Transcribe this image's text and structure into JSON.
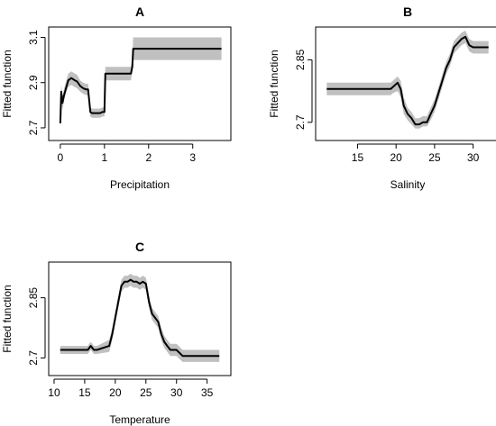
{
  "colors": {
    "band": "#c0c0c0",
    "line": "#000000",
    "axis": "#000000"
  },
  "chart_data": [
    {
      "id": "A",
      "type": "line",
      "title": "A",
      "xlabel": "Precipitation",
      "ylabel": "Fitted function",
      "xlim": [
        -0.1,
        3.7
      ],
      "ylim": [
        2.66,
        3.13
      ],
      "x_ticks": [
        0,
        1,
        2,
        3
      ],
      "y_ticks": [
        2.7,
        2.9,
        3.1
      ],
      "series": [
        {
          "x": [
            0.0,
            0.02,
            0.05,
            0.08,
            0.12,
            0.18,
            0.25,
            0.33,
            0.38,
            0.45,
            0.52,
            0.58,
            0.63,
            0.68,
            0.72,
            0.78,
            0.85,
            0.9,
            0.95,
            1.0,
            1.02,
            1.05,
            1.6,
            1.63,
            1.65,
            3.65
          ],
          "y": [
            2.72,
            2.86,
            2.81,
            2.84,
            2.87,
            2.91,
            2.92,
            2.91,
            2.905,
            2.885,
            2.875,
            2.87,
            2.87,
            2.77,
            2.765,
            2.765,
            2.765,
            2.765,
            2.77,
            2.77,
            2.94,
            2.94,
            2.94,
            2.97,
            3.05,
            3.05
          ],
          "lower": [
            2.7,
            2.82,
            2.78,
            2.82,
            2.85,
            2.88,
            2.89,
            2.88,
            2.875,
            2.86,
            2.85,
            2.845,
            2.845,
            2.75,
            2.745,
            2.745,
            2.745,
            2.745,
            2.75,
            2.75,
            2.91,
            2.91,
            2.91,
            2.95,
            3.0,
            3.0
          ],
          "upper": [
            2.74,
            2.89,
            2.84,
            2.87,
            2.9,
            2.94,
            2.95,
            2.94,
            2.935,
            2.91,
            2.9,
            2.895,
            2.895,
            2.79,
            2.785,
            2.785,
            2.785,
            2.785,
            2.79,
            2.79,
            2.97,
            2.97,
            2.97,
            3.0,
            3.1,
            3.1
          ]
        }
      ]
    },
    {
      "id": "B",
      "type": "line",
      "title": "B",
      "xlabel": "Salinity",
      "ylabel": "Fitted function",
      "xlim": [
        10.5,
        32.5
      ],
      "ylim": [
        2.665,
        2.92
      ],
      "x_ticks": [
        15,
        20,
        25,
        30
      ],
      "y_ticks": [
        2.7,
        2.85
      ],
      "series": [
        {
          "x": [
            11,
            19.3,
            19.6,
            20.2,
            20.6,
            21,
            21.5,
            22,
            22.5,
            23,
            23.5,
            24,
            24.5,
            25,
            25.5,
            26,
            26.5,
            27,
            27.5,
            28,
            28.5,
            29,
            29.5,
            30,
            32
          ],
          "y": [
            2.78,
            2.78,
            2.785,
            2.795,
            2.78,
            2.74,
            2.72,
            2.71,
            2.695,
            2.695,
            2.7,
            2.7,
            2.72,
            2.74,
            2.77,
            2.8,
            2.83,
            2.85,
            2.88,
            2.89,
            2.9,
            2.905,
            2.885,
            2.88,
            2.88
          ],
          "lower": [
            2.765,
            2.765,
            2.77,
            2.775,
            2.76,
            2.72,
            2.705,
            2.695,
            2.685,
            2.685,
            2.69,
            2.69,
            2.705,
            2.725,
            2.755,
            2.785,
            2.815,
            2.835,
            2.865,
            2.875,
            2.885,
            2.89,
            2.87,
            2.865,
            2.865
          ],
          "upper": [
            2.795,
            2.795,
            2.8,
            2.81,
            2.8,
            2.76,
            2.735,
            2.725,
            2.71,
            2.71,
            2.715,
            2.715,
            2.735,
            2.755,
            2.785,
            2.815,
            2.845,
            2.865,
            2.895,
            2.905,
            2.915,
            2.92,
            2.9,
            2.895,
            2.895
          ]
        }
      ]
    },
    {
      "id": "C",
      "type": "line",
      "title": "C",
      "xlabel": "Temperature",
      "ylabel": "Fitted function",
      "xlim": [
        10.3,
        37.7
      ],
      "ylim": [
        2.665,
        2.93
      ],
      "x_ticks": [
        10,
        15,
        20,
        25,
        30,
        35
      ],
      "y_ticks": [
        2.7,
        2.85
      ],
      "series": [
        {
          "x": [
            11,
            15.5,
            16,
            16.5,
            17,
            19,
            19.5,
            20,
            20.5,
            21,
            21.5,
            22,
            22.5,
            23,
            23.5,
            24,
            24.5,
            25,
            25.5,
            26,
            26.5,
            27,
            27.5,
            28,
            28.5,
            29,
            30,
            31,
            37
          ],
          "y": [
            2.72,
            2.72,
            2.73,
            2.72,
            2.72,
            2.73,
            2.76,
            2.8,
            2.84,
            2.88,
            2.89,
            2.89,
            2.895,
            2.89,
            2.89,
            2.885,
            2.89,
            2.885,
            2.84,
            2.81,
            2.8,
            2.79,
            2.76,
            2.74,
            2.73,
            2.72,
            2.72,
            2.705,
            2.705
          ],
          "lower": [
            2.71,
            2.71,
            2.72,
            2.71,
            2.71,
            2.715,
            2.745,
            2.785,
            2.825,
            2.865,
            2.875,
            2.875,
            2.88,
            2.875,
            2.875,
            2.87,
            2.875,
            2.87,
            2.825,
            2.795,
            2.785,
            2.775,
            2.745,
            2.725,
            2.715,
            2.705,
            2.705,
            2.69,
            2.69
          ],
          "upper": [
            2.73,
            2.73,
            2.74,
            2.73,
            2.73,
            2.745,
            2.775,
            2.815,
            2.855,
            2.895,
            2.905,
            2.905,
            2.91,
            2.905,
            2.905,
            2.9,
            2.905,
            2.9,
            2.855,
            2.825,
            2.815,
            2.805,
            2.775,
            2.755,
            2.745,
            2.735,
            2.735,
            2.72,
            2.72
          ]
        }
      ]
    }
  ]
}
